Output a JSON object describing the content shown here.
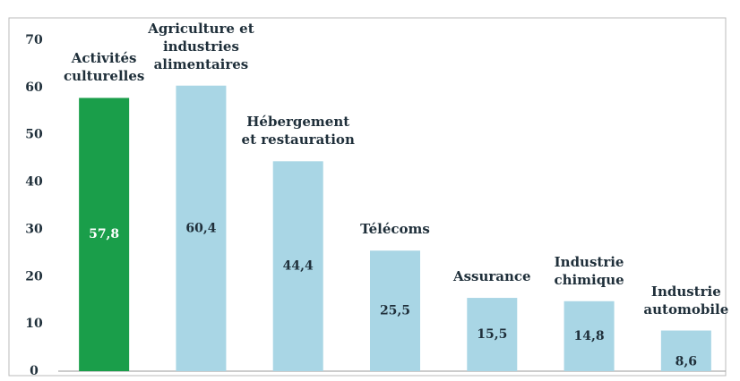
{
  "chart_data": {
    "type": "bar",
    "categories": [
      "Activités culturelles",
      "Agriculture et industries alimentaires",
      "Hébergement et restauration",
      "Télécoms",
      "Assurance",
      "Industrie chimique",
      "Industrie automobile"
    ],
    "values": [
      57.8,
      60.4,
      44.4,
      25.5,
      15.5,
      14.8,
      8.6
    ],
    "value_labels": [
      "57,8",
      "60,4",
      "44,4",
      "25,5",
      "15,5",
      "14,8",
      "8,6"
    ],
    "colors": [
      "#1a9e4a",
      "#a9d6e5",
      "#a9d6e5",
      "#a9d6e5",
      "#a9d6e5",
      "#a9d6e5",
      "#a9d6e5"
    ],
    "value_label_colors": [
      "#ffffff",
      "#1f2f3a",
      "#1f2f3a",
      "#1f2f3a",
      "#1f2f3a",
      "#1f2f3a",
      "#1f2f3a"
    ],
    "ylim": [
      0,
      70
    ],
    "yticks": [
      0,
      10,
      20,
      30,
      40,
      50,
      60,
      70
    ],
    "grid": false
  }
}
